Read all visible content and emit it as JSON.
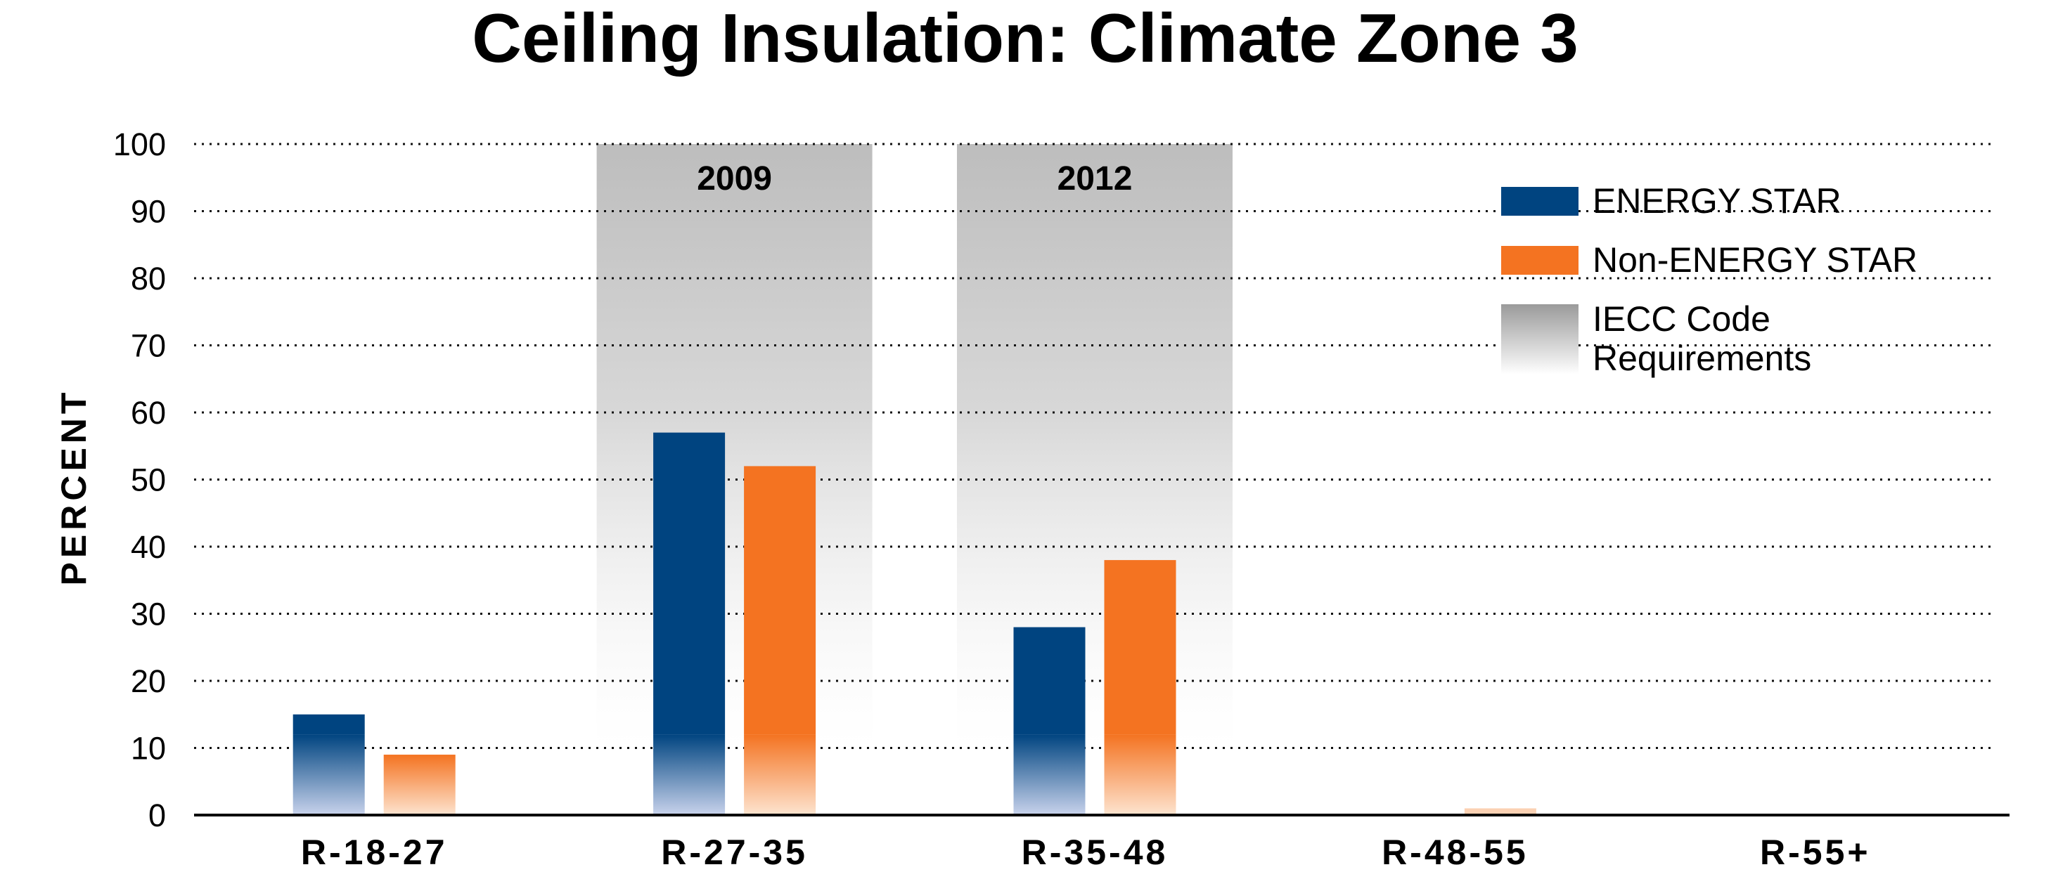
{
  "chart_data": {
    "type": "bar",
    "title": "Ceiling Insulation: Climate Zone 3",
    "xlabel": "",
    "ylabel": "PERCENT",
    "ylim": [
      0,
      100
    ],
    "yticks": [
      0,
      10,
      20,
      30,
      40,
      50,
      60,
      70,
      80,
      90,
      100
    ],
    "grid": "horizontal dotted",
    "legend_position": "top-right",
    "categories": [
      "R-18-27",
      "R-27-35",
      "R-35-48",
      "R-48-55",
      "R-55+"
    ],
    "series": [
      {
        "name": "ENERGY STAR",
        "color": "#004480",
        "values": [
          15,
          57,
          28,
          0,
          0
        ]
      },
      {
        "name": "Non-ENERGY STAR",
        "color": "#f47321",
        "values": [
          9,
          52,
          38,
          1,
          0
        ]
      }
    ],
    "code_requirements": {
      "name": "IECC Code Requirements",
      "color": "#a9a9a9",
      "bands": [
        {
          "category": "R-27-35",
          "label": "2009"
        },
        {
          "category": "R-35-48",
          "label": "2012"
        }
      ]
    }
  }
}
